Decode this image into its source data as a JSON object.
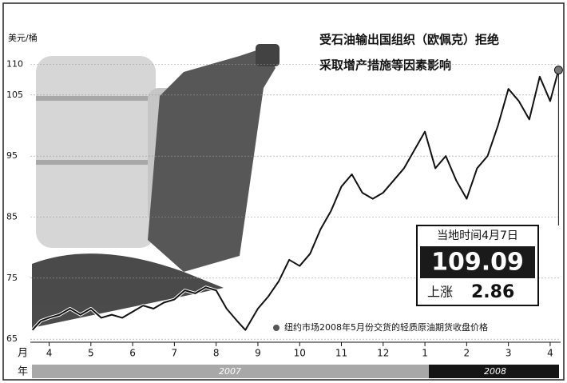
{
  "chart_data": {
    "type": "line",
    "title": "受石油输出国组织（欧佩克）拒绝",
    "subtitle": "采取增产措施等因素影响",
    "y_label": "美元/桶",
    "x_label": "月",
    "year_label": "年",
    "years": [
      "2007",
      "2008"
    ],
    "note": "纽约市场2008年5月份交货的轻质原油期货收盘价格",
    "callout": {
      "date": "当地时间4月7日",
      "close": 109.09,
      "change_label": "上涨",
      "change": 2.86
    },
    "series": [
      {
        "name": "纽约市场2008年5月份交货的轻质原油期货收盘价格",
        "color": "#111111",
        "x": [
          -0.4,
          -0.2,
          0,
          0.25,
          0.5,
          0.75,
          1,
          1.25,
          1.5,
          1.75,
          2,
          2.25,
          2.5,
          2.75,
          3,
          3.25,
          3.5,
          3.75,
          4,
          4.25,
          4.5,
          4.7,
          5,
          5.25,
          5.5,
          5.75,
          6,
          6.25,
          6.5,
          6.75,
          7,
          7.25,
          7.5,
          7.75,
          8,
          8.25,
          8.5,
          8.75,
          9,
          9.25,
          9.5,
          9.75,
          10,
          10.25,
          10.5,
          10.75,
          11,
          11.25,
          11.5,
          11.75,
          12,
          12.2
        ],
        "values": [
          66.5,
          68,
          68.5,
          69,
          70,
          69,
          70,
          68.5,
          69,
          68.5,
          69.5,
          70.5,
          70,
          71,
          71.5,
          73,
          72.5,
          73.5,
          73,
          70,
          68,
          66.5,
          70,
          72,
          74.5,
          78,
          77,
          79,
          83,
          86,
          90,
          92,
          89,
          88,
          89,
          91,
          93,
          96,
          99,
          93,
          95,
          91,
          88,
          93,
          95,
          100,
          106,
          104,
          101,
          108,
          104,
          109.09
        ]
      }
    ],
    "xlim": [
      -0.45,
      12.25
    ],
    "xticks": [
      {
        "value": 0,
        "label": "4"
      },
      {
        "value": 1,
        "label": "5"
      },
      {
        "value": 2,
        "label": "6"
      },
      {
        "value": 3,
        "label": "7"
      },
      {
        "value": 4,
        "label": "8"
      },
      {
        "value": 5,
        "label": "9"
      },
      {
        "value": 6,
        "label": "10"
      },
      {
        "value": 7,
        "label": "11"
      },
      {
        "value": 8,
        "label": "12"
      },
      {
        "value": 9,
        "label": "1"
      },
      {
        "value": 10,
        "label": "2"
      },
      {
        "value": 11,
        "label": "3"
      },
      {
        "value": 12,
        "label": "4"
      }
    ],
    "ylim": [
      64.5,
      111
    ],
    "yticks": [
      65,
      75,
      85,
      95,
      105,
      110
    ],
    "grid": true
  }
}
